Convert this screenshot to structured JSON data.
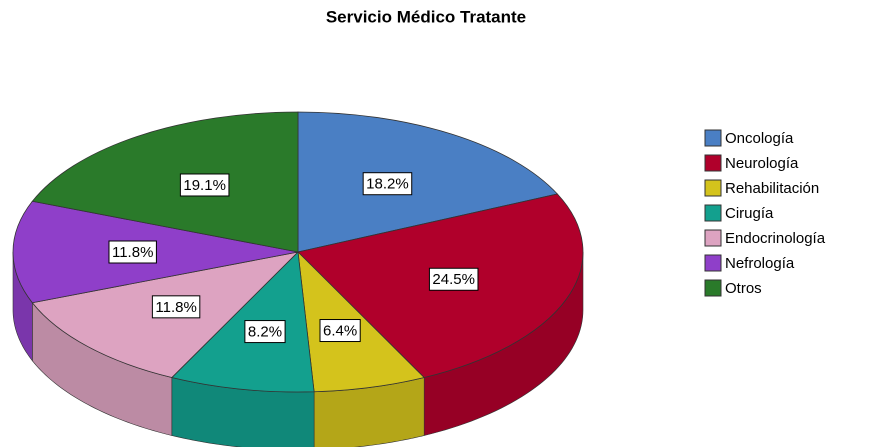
{
  "chart_data": {
    "type": "pie",
    "title": "Servicio Médico Tratante",
    "categories": [
      "Oncología",
      "Neurología",
      "Rehabilitación",
      "Cirugía",
      "Endocrinología",
      "Nefrología",
      "Otros"
    ],
    "values": [
      18.2,
      24.5,
      6.4,
      8.2,
      11.8,
      11.8,
      19.1
    ],
    "value_labels": [
      "18.2%",
      "24.5%",
      "6.4%",
      "8.2%",
      "11.8%",
      "11.8%",
      "19.1%"
    ],
    "colors": [
      "#4a7fc4",
      "#b0002b",
      "#d4c31c",
      "#13a08e",
      "#dda3c1",
      "#8f3fc9",
      "#2a7a2a"
    ],
    "legend": "right"
  }
}
